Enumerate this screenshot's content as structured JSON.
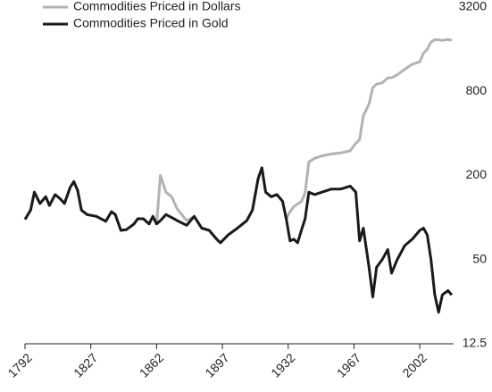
{
  "chart_data": {
    "type": "line",
    "x": [
      1792,
      1795,
      1797,
      1800,
      1803,
      1805,
      1808,
      1811,
      1813,
      1816,
      1818,
      1820,
      1822,
      1825,
      1830,
      1835,
      1838,
      1840,
      1843,
      1846,
      1850,
      1852,
      1855,
      1858,
      1860,
      1862,
      1864,
      1867,
      1870,
      1873,
      1878,
      1882,
      1886,
      1890,
      1894,
      1896,
      1900,
      1905,
      1910,
      1913,
      1916,
      1918,
      1920,
      1923,
      1926,
      1929,
      1931,
      1933,
      1935,
      1937,
      1939,
      1941,
      1943,
      1946,
      1950,
      1955,
      1960,
      1965,
      1968,
      1970,
      1972,
      1975,
      1977,
      1979,
      1982,
      1985,
      1987,
      1990,
      1994,
      1998,
      2002,
      2004,
      2006,
      2008,
      2010,
      2012,
      2014,
      2017,
      2019
    ],
    "series": [
      {
        "name": "Commodities Priced in Dollars",
        "color": "#b3b3b3",
        "values": [
          97,
          113,
          152,
          126,
          141,
          122,
          146,
          135,
          126,
          164,
          181,
          157,
          113,
          105,
          102,
          94,
          110,
          105,
          81,
          82,
          90,
          98,
          98,
          90,
          102,
          90,
          200,
          152,
          141,
          115,
          95,
          102,
          84,
          81,
          70,
          66,
          75,
          84,
          95,
          113,
          190,
          227,
          152,
          141,
          146,
          131,
          98,
          110,
          120,
          125,
          130,
          150,
          250,
          265,
          276,
          285,
          290,
          300,
          340,
          360,
          535,
          650,
          850,
          900,
          919,
          1000,
          1000,
          1050,
          1150,
          1250,
          1300,
          1500,
          1600,
          1800,
          1870,
          1870,
          1850,
          1880,
          1850
        ]
      },
      {
        "name": "Commodities Priced in Gold",
        "color": "#1a1a1a",
        "values": [
          97,
          113,
          152,
          126,
          141,
          122,
          146,
          135,
          126,
          164,
          181,
          157,
          113,
          105,
          102,
          94,
          110,
          105,
          81,
          82,
          90,
          98,
          98,
          90,
          102,
          90,
          95,
          105,
          100,
          95,
          88,
          102,
          84,
          81,
          70,
          66,
          75,
          84,
          95,
          113,
          190,
          227,
          152,
          141,
          146,
          131,
          98,
          68,
          70,
          66,
          81,
          98,
          152,
          146,
          152,
          160,
          160,
          168,
          152,
          68,
          84,
          44,
          27,
          44,
          50,
          59,
          40,
          50,
          63,
          70,
          81,
          84,
          75,
          50,
          28,
          21,
          28,
          30,
          28
        ]
      }
    ],
    "xlim": [
      1792,
      2020
    ],
    "xticks": [
      1792,
      1827,
      1862,
      1897,
      1932,
      1967,
      2002
    ],
    "ylim": [
      12.5,
      3200
    ],
    "yticks": [
      12.5,
      50,
      200,
      800,
      3200
    ],
    "log_y": true,
    "legend": "top-left"
  }
}
